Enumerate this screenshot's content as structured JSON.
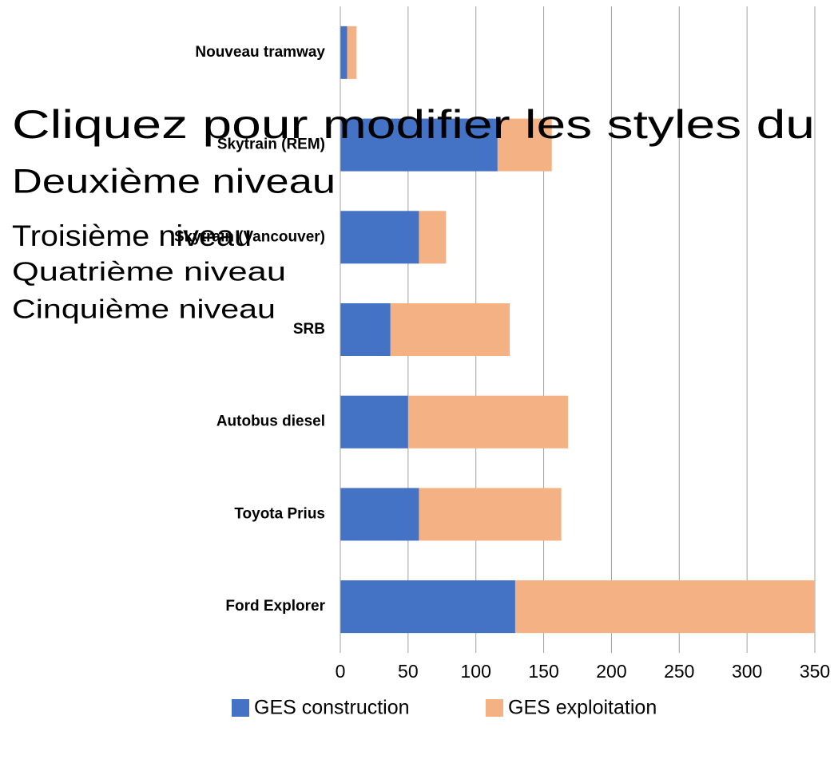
{
  "chart_data": {
    "type": "stacked_barh",
    "categories": [
      "Nouveau tramway",
      "Skytrain (REM)",
      "Skytrain (Vancouver)",
      "SRB",
      "Autobus diesel",
      "Toyota Prius",
      "Ford Explorer"
    ],
    "series": [
      {
        "name": "GES construction",
        "color": "#4472c4",
        "values": [
          5,
          116,
          58,
          37,
          50,
          58,
          129
        ]
      },
      {
        "name": "GES exploitation",
        "color": "#f4b183",
        "values": [
          7,
          40,
          20,
          88,
          118,
          105,
          221
        ]
      }
    ],
    "xlim": [
      0,
      350
    ],
    "xticks": [
      0,
      50,
      100,
      150,
      200,
      250,
      300,
      350
    ],
    "grid": true,
    "legend": "bottom",
    "annotations": [
      "Cliquez pour modifier les styles du",
      "Deuxième niveau",
      "Troisième niveau",
      "Quatrième niveau",
      "Cinquième niveau"
    ]
  }
}
